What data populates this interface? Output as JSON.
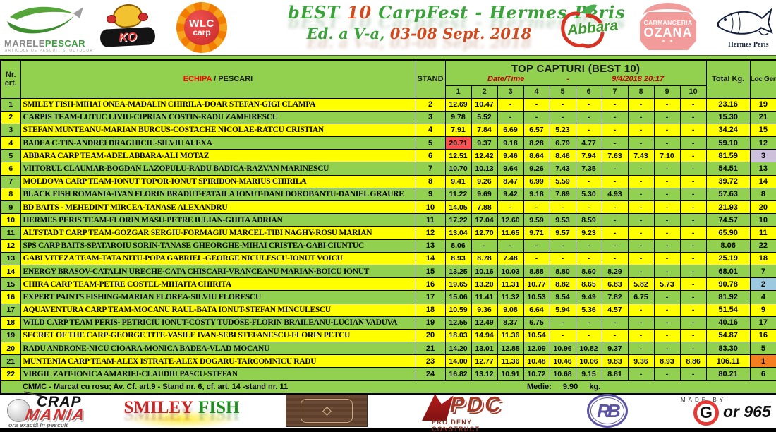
{
  "title": {
    "part1": "bEST",
    "part2": "10",
    "part3": "CarpFest - Hermes Peris",
    "line2_part1": "Ed. a V-a,",
    "line2_part2": "03-08 Sept. 2018"
  },
  "logos_top": {
    "marelepescar": {
      "name_part1": "MARELE",
      "name_part2": "PESCAR",
      "tagline": "ARTICOLE DE PESCUIT SI OUTDOOR"
    },
    "ko_baits": {
      "label": "KO"
    },
    "wlc": {
      "line1": "WLC",
      "line2": "carp"
    },
    "abbara": {
      "label": "Abbara"
    },
    "ozana": {
      "line1": "CARMANGERIA",
      "line2": "OZANA",
      "stars": "★ ★"
    },
    "hermes": {
      "label": "Hermes Peris"
    }
  },
  "table": {
    "headers": {
      "nr_line1": "Nr.",
      "nr_line2": "crt.",
      "echipa_red": "ECHIPA",
      "echipa_rest": " / PESCARI",
      "stand": "STAND",
      "top_capturi": "TOP CAPTURI (BEST 10)",
      "datetime_label": "Date/Time",
      "datetime_sep": "-",
      "datetime_value": "9/4/2018 20:17",
      "catch_cols": [
        "1",
        "2",
        "3",
        "4",
        "5",
        "6",
        "7",
        "8",
        "9",
        "10"
      ],
      "total": "Total Kg.",
      "loc": "Loc Gen."
    },
    "rows": [
      {
        "nr": "1",
        "team": "SMILEY FISH-MIHAI ONEA-MADALIN CHIRILA-DOAR STEFAN-GIGI CLAMPA",
        "stand": "2",
        "catches": [
          "12.69",
          "10.47",
          "-",
          "-",
          "-",
          "-",
          "-",
          "-",
          "-",
          "-"
        ],
        "total": "23.16",
        "loc": "19"
      },
      {
        "nr": "2",
        "team": "CARPIS TEAM-LUTUC LIVIU-CIPRIAN COSTIN-RADU ZAMFIRESCU",
        "stand": "3",
        "catches": [
          "9.78",
          "5.52",
          "-",
          "-",
          "-",
          "-",
          "-",
          "-",
          "-",
          "-"
        ],
        "total": "15.30",
        "loc": "21"
      },
      {
        "nr": "3",
        "team": "STEFAN MUNTEANU-MARIAN BURCUS-COSTACHE NICOLAE-RATCU CRISTIAN",
        "stand": "4",
        "catches": [
          "7.91",
          "7.84",
          "6.69",
          "6.57",
          "5.23",
          "-",
          "-",
          "-",
          "-",
          "-"
        ],
        "total": "34.24",
        "loc": "15"
      },
      {
        "nr": "4",
        "team": "BADEA C-TIN-ANDREI DRAGHICIU-SILVIU ALEXA",
        "stand": "5",
        "catches": [
          "20.71",
          "9.37",
          "9.18",
          "8.28",
          "6.79",
          "4.77",
          "-",
          "-",
          "-",
          "-"
        ],
        "total": "59.10",
        "loc": "12",
        "mark_catch": 0
      },
      {
        "nr": "5",
        "team": "ABBARA  CARP TEAM-ADEL ABBARA-ALI MOTAZ",
        "stand": "6",
        "catches": [
          "12.51",
          "12.42",
          "9.46",
          "8.64",
          "8.46",
          "7.94",
          "7.63",
          "7.43",
          "7.10",
          "-"
        ],
        "total": "81.59",
        "loc": "3",
        "loc_bg": "#CCC0DA"
      },
      {
        "nr": "6",
        "team": "VIITORUL CLAUMAR-BOGDAN LAZOPULU-RADU BADICA-RAZVAN MARINESCU",
        "stand": "7",
        "catches": [
          "10.70",
          "10.13",
          "9.64",
          "9.26",
          "7.43",
          "7.35",
          "-",
          "-",
          "-",
          "-"
        ],
        "total": "54.51",
        "loc": "13"
      },
      {
        "nr": "7",
        "team": "MOLDOVA CARP TEAM-IONUT TOPOR-IONUT SPIRIDON-MARIUS CHIRILA",
        "stand": "8",
        "catches": [
          "9.41",
          "9.26",
          "8.47",
          "6.99",
          "5.59",
          "-",
          "-",
          "-",
          "-",
          "-"
        ],
        "total": "39.72",
        "loc": "14"
      },
      {
        "nr": "8",
        "team": "BLACK FISH ROMANIA-IVAN FLORIN BRADUT-FATAILA IONUT-DANI DOROBANTU-DANIEL GRAURE",
        "stand": "9",
        "catches": [
          "11.22",
          "9.69",
          "9.42",
          "9.18",
          "7.89",
          "5.30",
          "4.93",
          "-",
          "-",
          "-"
        ],
        "total": "57.63",
        "loc": "8"
      },
      {
        "nr": "9",
        "team": "BD BAITS - MEHEDINT MIRCEA-TANASE ALEXANDRU",
        "stand": "10",
        "catches": [
          "14.05",
          "7.88",
          "-",
          "-",
          "-",
          "-",
          "-",
          "-",
          "-",
          "-"
        ],
        "total": "21.93",
        "loc": "20"
      },
      {
        "nr": "10",
        "team": "HERMES PERIS TEAM-FLORIN MASU-PETRE IULIAN-GHITA ADRIAN",
        "stand": "11",
        "catches": [
          "17.22",
          "17.04",
          "12.60",
          "9.59",
          "9.53",
          "8.59",
          "-",
          "-",
          "-",
          "-"
        ],
        "total": "74.57",
        "loc": "10"
      },
      {
        "nr": "11",
        "team": "ALTSTADT CARP TEAM-GOZGAR SERGIU-FORMAGIU MARCEL-TIBI NAGHY-ROSU MARIAN",
        "stand": "12",
        "catches": [
          "13.04",
          "12.70",
          "11.65",
          "9.71",
          "9.57",
          "9.23",
          "-",
          "-",
          "-",
          "-"
        ],
        "total": "65.90",
        "loc": "11"
      },
      {
        "nr": "12",
        "team": "SPS CARP BAITS-SPATAROIU SORIN-TANASE GHEORGHE-MIHAI CRISTEA-GABI CIUNTUC",
        "stand": "13",
        "catches": [
          "8.06",
          "-",
          "-",
          "-",
          "-",
          "-",
          "-",
          "-",
          "-",
          "-"
        ],
        "total": "8.06",
        "loc": "22"
      },
      {
        "nr": "13",
        "team": "GABI VITEZA TEAM-TATA NITU-POPA GABRIEL-GEORGE NICULESCU-IONUT VOICU",
        "stand": "14",
        "catches": [
          "8.93",
          "8.78",
          "7.48",
          "-",
          "-",
          "-",
          "-",
          "-",
          "-",
          "-"
        ],
        "total": "25.19",
        "loc": "18"
      },
      {
        "nr": "14",
        "team": "ENERGY BRASOV-CATALIN URECHE-CATA CHISCARI-VRANCEANU MARIAN-BOICU IONUT",
        "stand": "15",
        "catches": [
          "13.25",
          "10.16",
          "10.03",
          "8.88",
          "8.80",
          "8.60",
          "8.29",
          "-",
          "-",
          "-"
        ],
        "total": "68.01",
        "loc": "7"
      },
      {
        "nr": "15",
        "team": "CHIRA CARP TEAM-PETRE COSTEL-MIHAITA CHIRITA",
        "stand": "16",
        "catches": [
          "19.65",
          "13.20",
          "11.31",
          "10.77",
          "8.82",
          "8.65",
          "6.83",
          "5.82",
          "5.73",
          "-"
        ],
        "total": "90.78",
        "loc": "2",
        "loc_bg": "#9DC9E0"
      },
      {
        "nr": "16",
        "team": "EXPERT PAINTS FISHING-MARIAN FLOREA-SILVIU FLORESCU",
        "stand": "17",
        "catches": [
          "15.06",
          "11.41",
          "11.32",
          "10.53",
          "9.54",
          "9.49",
          "7.82",
          "6.75",
          "-",
          "-"
        ],
        "total": "81.92",
        "loc": "4"
      },
      {
        "nr": "17",
        "team": "AQUAVENTURA CARP TEAM-MOCANU RAUL-BATA IONUT-STEFAN MINCULESCU",
        "stand": "18",
        "catches": [
          "10.59",
          "9.36",
          "9.08",
          "6.64",
          "5.94",
          "5.36",
          "4.57",
          "-",
          "-",
          "-"
        ],
        "total": "51.54",
        "loc": "9"
      },
      {
        "nr": "18",
        "team": "WILD CARP TEAM PERIS- PETRICIU IONUT-COSTY TUDOSE-FLORIN BRAILEANU-LUCIAN VADUVA",
        "stand": "19",
        "catches": [
          "12.55",
          "12.49",
          "8.37",
          "6.75",
          "-",
          "-",
          "-",
          "-",
          "-",
          "-"
        ],
        "total": "40.16",
        "loc": "17"
      },
      {
        "nr": "19",
        "team": "SECRET OF THE CARP-GEORGE TITE-VASILE IVAN-SEBI STEFANESCU-FLORIN PETCU",
        "stand": "20",
        "catches": [
          "18.03",
          "14.94",
          "11.36",
          "10.54",
          "-",
          "-",
          "-",
          "-",
          "-",
          "-"
        ],
        "total": "54.87",
        "loc": "16"
      },
      {
        "nr": "20",
        "team": "RADU ANDRONE-NICU CIOARA-MONICA BADEA-VLAD MOCANU",
        "stand": "21",
        "catches": [
          "14.20",
          "13.01",
          "12.85",
          "12.09",
          "10.96",
          "10.82",
          "9.37",
          "-",
          "-",
          "-"
        ],
        "total": "83.30",
        "loc": "5"
      },
      {
        "nr": "21",
        "team": "MUNTENIA CARP TEAM-ALEX ISTRATE-ALEX DOGARU-TARCOMNICU RADU",
        "stand": "23",
        "catches": [
          "14.00",
          "12.77",
          "11.36",
          "10.48",
          "10.46",
          "10.06",
          "9.83",
          "9.36",
          "8.93",
          "8.86"
        ],
        "total": "106.11",
        "loc": "1",
        "loc_bg": "#F57E20"
      },
      {
        "nr": "22",
        "team": "VIRGIL ZAIT-IONICA AMARIEI-CLAUDIU PASCU-STEFAN",
        "stand": "24",
        "catches": [
          "16.82",
          "13.12",
          "10.91",
          "10.72",
          "10.68",
          "9.15",
          "8.81",
          "-",
          "-",
          "-"
        ],
        "total": "80.21",
        "loc": "6"
      }
    ],
    "note": "CMMC - Marcat cu rosu;  Av. Cf. art.9 - Stand nr. 6, cf. art. 14 -stand  nr. 11",
    "medie_label": "Medie:",
    "medie_value": "9.90",
    "medie_unit": "kg."
  },
  "logos_bottom": {
    "crapmania": {
      "line1": "CRAP",
      "line2": "MANIA",
      "tagline": "ora exactă in pescuit"
    },
    "smileyfish": {
      "part1": "SMILEY",
      "part2": "FISH"
    },
    "pdc": {
      "label": "PDC",
      "tagline": "PRO DENY CONSTRUCT"
    },
    "rb": {
      "label": "RB"
    },
    "gor": {
      "madeby": "made by",
      "label1": "G",
      "label2": "or 965"
    }
  },
  "colors": {
    "green": "#92D050",
    "yellow": "#FFFF00",
    "record_mark": "#FF5050",
    "loc1": "#F57E20",
    "loc2": "#9DC9E0",
    "loc3": "#CCC0DA",
    "header_red": "#FF0000",
    "date_red": "#C00000",
    "title_green": "#3BA13B",
    "title_orange": "#D04A1E"
  }
}
